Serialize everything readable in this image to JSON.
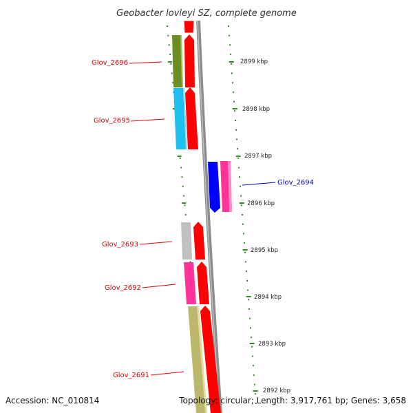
{
  "title": "Geobacter lovleyi SZ, complete genome",
  "accession_text": "Accession: NC_010814",
  "summary_text": "Topology: circular; Length: 3,917,761 bp; Genes: 3,658",
  "colors": {
    "tick": "#2e8b1e",
    "backbone": "#8c8c8c",
    "label_red": "#dd0000",
    "label_blue": "#0000cc",
    "cds_red": "#ff0000",
    "cds_pink": "#ff3399",
    "olive": "#6b8e23",
    "cyan": "#1ec0f0",
    "blue": "#0000ff",
    "gray": "#c0c0c0",
    "khaki": "#bdb76b"
  },
  "ticks": [
    {
      "label": "2899 kbp"
    },
    {
      "label": "2898 kbp"
    },
    {
      "label": "2897 kbp"
    },
    {
      "label": "2896 kbp"
    },
    {
      "label": "2895 kbp"
    },
    {
      "label": "2894 kbp"
    },
    {
      "label": "2893 kbp"
    },
    {
      "label": "2892 kbp"
    }
  ],
  "genes": [
    {
      "name": "Glov_2696",
      "color": "#dd0000"
    },
    {
      "name": "Glov_2695",
      "color": "#dd0000"
    },
    {
      "name": "Glov_2694",
      "color": "#0000cc"
    },
    {
      "name": "Glov_2693",
      "color": "#dd0000"
    },
    {
      "name": "Glov_2692",
      "color": "#dd0000"
    },
    {
      "name": "Glov_2691",
      "color": "#dd0000"
    }
  ]
}
